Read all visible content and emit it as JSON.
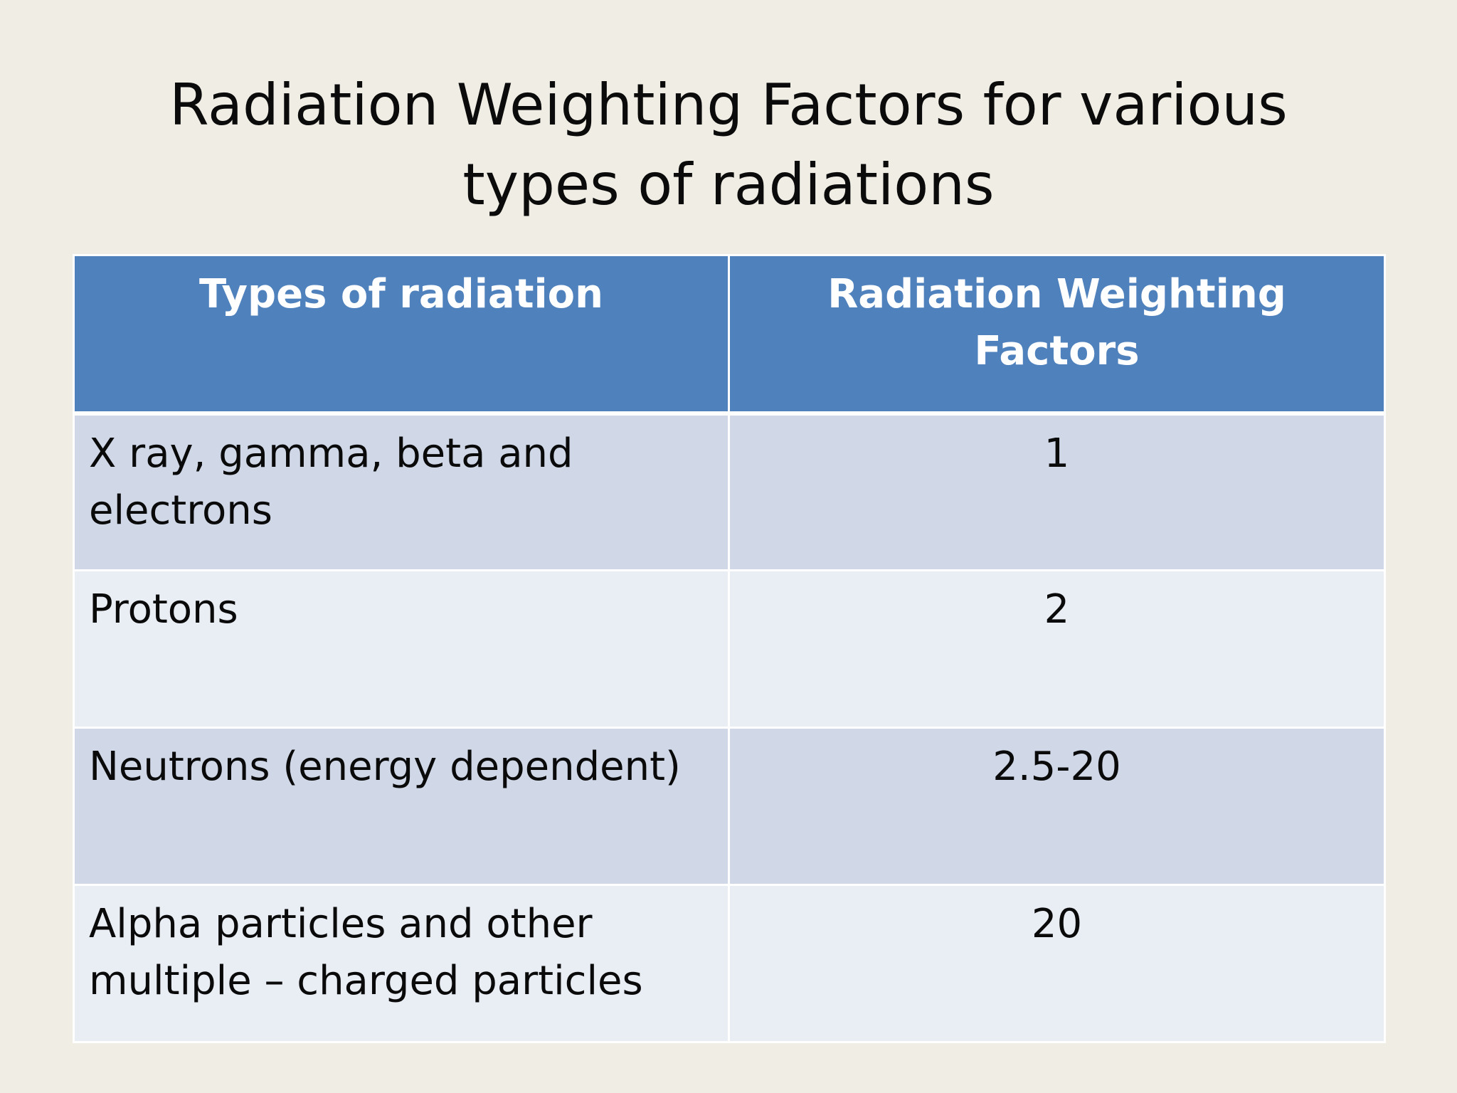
{
  "slide": {
    "title": "Radiation Weighting Factors for various types of radiations"
  },
  "table": {
    "headers": [
      "Types of radiation",
      "Radiation Weighting Factors"
    ],
    "rows": [
      {
        "type": "X ray, gamma, beta and electrons",
        "factor": "1"
      },
      {
        "type": "Protons",
        "factor": "2"
      },
      {
        "type": "Neutrons (energy dependent)",
        "factor": "2.5-20"
      },
      {
        "type": "Alpha particles and other multiple – charged particles",
        "factor": "20"
      }
    ]
  },
  "colors": {
    "background": "#efede4",
    "header": "#4f81bd",
    "row_odd": "#d0d8e8",
    "row_even": "#e9edf4"
  }
}
